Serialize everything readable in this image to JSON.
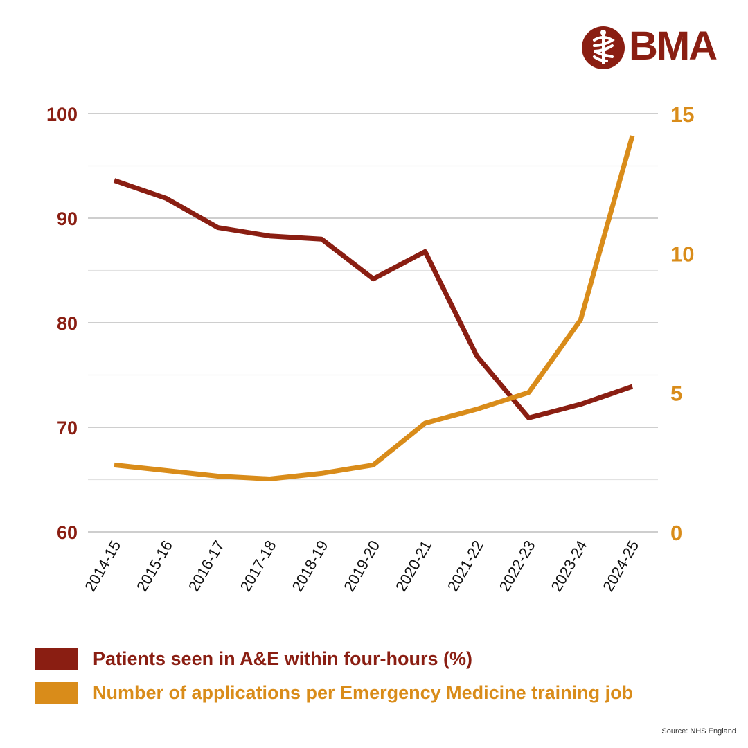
{
  "brand": {
    "name": "BMA",
    "logo_icon": "caduceus-icon",
    "color": "#8a1e12"
  },
  "colors": {
    "primary": "#8a1e12",
    "secondary": "#d98c1a",
    "grid_major": "#bdbdbd",
    "grid_minor": "#e2e2e2"
  },
  "chart_data": {
    "type": "line",
    "title": "",
    "categories": [
      "2014-15",
      "2015-16",
      "2016-17",
      "2017-18",
      "2018-19",
      "2019-20",
      "2020-21",
      "2021-22",
      "2022-23",
      "2023-24",
      "2024-25"
    ],
    "series": [
      {
        "name": "Patients seen in A&E within four-hours (%)",
        "axis": "left",
        "color": "#8a1e12",
        "values": [
          93.6,
          91.9,
          89.1,
          88.3,
          88.0,
          84.2,
          86.8,
          76.8,
          70.9,
          72.2,
          73.9
        ]
      },
      {
        "name": "Number of applications per Emergency Medicine training job",
        "axis": "right",
        "color": "#d98c1a",
        "values": [
          2.4,
          2.2,
          2.0,
          1.9,
          2.1,
          2.4,
          3.9,
          4.4,
          5.0,
          7.6,
          14.2
        ]
      }
    ],
    "y_left": {
      "min": 60,
      "max": 100,
      "ticks": [
        60,
        70,
        80,
        90,
        100
      ],
      "minor_step": 5
    },
    "y_right": {
      "min": 0,
      "max": 15,
      "ticks": [
        0,
        5,
        10,
        15
      ]
    },
    "grid": true,
    "legend_position": "bottom-left"
  },
  "legend": [
    {
      "label": "Patients seen in A&E within four-hours (%)",
      "color": "#8a1e12"
    },
    {
      "label": "Number of applications per Emergency Medicine training job",
      "color": "#d98c1a"
    }
  ],
  "source": "Source: NHS England"
}
